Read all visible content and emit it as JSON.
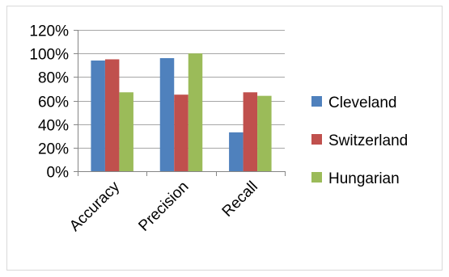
{
  "chart_data": {
    "type": "bar",
    "categories": [
      "Accuracy",
      "Precision",
      "Recall"
    ],
    "series": [
      {
        "name": "Cleveland",
        "values": [
          94,
          96,
          33
        ],
        "color": "#4f81bd"
      },
      {
        "name": "Switzerland",
        "values": [
          95,
          65,
          67
        ],
        "color": "#c0504d"
      },
      {
        "name": "Hungarian",
        "values": [
          67,
          100,
          64
        ],
        "color": "#9bbb59"
      }
    ],
    "y_ticks": [
      "0%",
      "20%",
      "40%",
      "60%",
      "80%",
      "100%",
      "120%"
    ],
    "ylim": [
      0,
      120
    ],
    "grid": true,
    "legend_position": "right",
    "title": "",
    "xlabel": "",
    "ylabel": ""
  }
}
